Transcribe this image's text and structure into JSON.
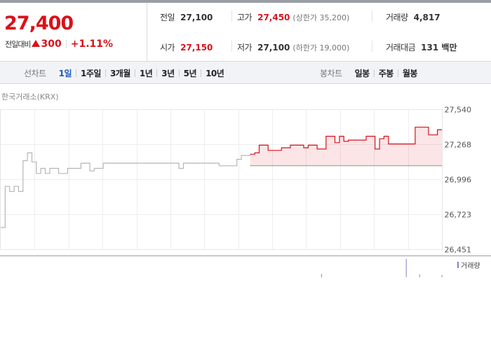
{
  "header": {
    "current_price": "27,400",
    "change_label": "전일대비",
    "change_value": "300",
    "change_percent": "+1.11%",
    "stats": {
      "prev_close": {
        "label": "전일",
        "value": "27,100"
      },
      "high": {
        "label": "고가",
        "value": "27,450",
        "sub": "(상한가 35,200)"
      },
      "volume": {
        "label": "거래량",
        "value": "4,817"
      },
      "open": {
        "label": "시가",
        "value": "27,150"
      },
      "low": {
        "label": "저가",
        "value": "27,100",
        "sub": "(하한가 19,000)"
      },
      "trade_value": {
        "label": "거래대금",
        "value": "131 백만"
      }
    }
  },
  "toolbar": {
    "line_chart": {
      "title": "선차트",
      "items": [
        "1일",
        "1주일",
        "3개월",
        "1년",
        "3년",
        "5년",
        "10년"
      ],
      "active": "1일"
    },
    "candle_chart": {
      "title": "봉차트",
      "items": [
        "일봉",
        "주봉",
        "월봉"
      ]
    }
  },
  "chart": {
    "exchange_label": "한국거래소(KRX)",
    "volume_label": "거래량"
  },
  "colors": {
    "up": "#d9121a",
    "accent": "#1f5bc1",
    "volume": "#8a7dc6"
  },
  "chart_data": {
    "type": "line",
    "y_ticks": [
      "27,540",
      "27,268",
      "26,996",
      "26,723",
      "26,451"
    ],
    "ylim": [
      26451,
      27540
    ],
    "baseline": 27100,
    "grid": true,
    "series": [
      {
        "x": [
          0,
          1,
          2,
          3,
          4,
          5,
          6,
          7,
          8,
          9,
          10,
          11,
          12,
          13,
          14,
          15,
          16,
          17,
          18,
          19,
          20,
          21,
          22,
          23,
          24,
          25,
          26,
          27,
          28,
          29,
          30,
          31,
          32,
          33,
          34,
          35,
          36,
          37,
          38,
          39,
          40,
          41,
          42,
          43,
          44,
          45,
          46,
          47,
          48,
          49,
          50,
          51,
          52,
          53,
          54,
          55,
          56,
          57,
          58,
          59,
          60,
          61,
          62,
          63,
          64,
          65,
          66,
          67,
          68,
          69,
          70,
          71,
          72,
          73,
          74,
          75,
          76,
          77,
          78,
          79,
          80,
          81,
          82,
          83,
          84,
          85,
          86,
          87,
          88,
          89,
          90,
          91,
          92,
          93,
          94,
          95,
          96,
          97,
          98,
          99
        ],
        "values": [
          26620,
          26940,
          26900,
          26940,
          26900,
          27140,
          27200,
          27130,
          27040,
          27080,
          27040,
          27080,
          27080,
          27040,
          27040,
          27080,
          27080,
          27080,
          27120,
          27120,
          27060,
          27080,
          27080,
          27120,
          27120,
          27120,
          27120,
          27120,
          27120,
          27120,
          27120,
          27120,
          27120,
          27120,
          27120,
          27120,
          27120,
          27120,
          27120,
          27120,
          27080,
          27120,
          27120,
          27120,
          27120,
          27120,
          27120,
          27120,
          27120,
          27100,
          27100,
          27100,
          27100,
          27150,
          27180,
          27180,
          27190,
          27200,
          27260,
          27260,
          27220,
          27220,
          27220,
          27240,
          27240,
          27260,
          27260,
          27260,
          27240,
          27260,
          27260,
          27230,
          27230,
          27330,
          27330,
          27280,
          27330,
          27290,
          27300,
          27300,
          27300,
          27300,
          27330,
          27330,
          27230,
          27310,
          27330,
          27270,
          27270,
          27270,
          27270,
          27270,
          27270,
          27400,
          27400,
          27400,
          27340,
          27340,
          27380,
          27380
        ]
      }
    ],
    "volume": [
      0,
      0,
      0,
      0,
      0,
      0,
      0,
      0,
      0,
      0,
      0,
      0,
      0,
      0,
      0,
      0,
      0,
      0,
      0,
      0,
      0,
      0,
      0,
      0,
      0,
      0,
      0,
      0,
      0,
      0,
      0,
      0,
      0,
      0,
      0,
      0,
      0,
      0,
      0,
      0,
      0,
      0,
      0,
      0,
      0,
      0,
      0,
      0,
      0,
      0,
      0,
      0,
      0,
      0,
      0,
      0,
      0,
      0,
      0,
      0,
      0,
      0,
      0,
      0,
      0,
      0,
      0,
      0,
      0,
      0,
      0,
      0,
      18,
      0,
      0,
      0,
      0,
      0,
      0,
      0,
      0,
      0,
      0,
      0,
      0,
      0,
      0,
      0,
      0,
      0,
      0,
      100,
      0,
      0,
      16,
      0,
      0,
      0,
      0,
      12
    ]
  }
}
